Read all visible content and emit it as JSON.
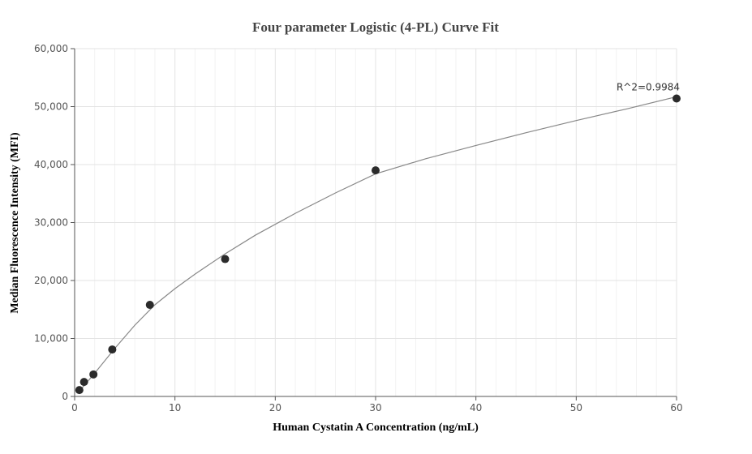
{
  "chart_data": {
    "type": "scatter",
    "title": "Four parameter Logistic (4-PL) Curve Fit",
    "xlabel": "Human Cystatin A Concentration (ng/mL)",
    "ylabel": "Median Fluorescence Intensity (MFI)",
    "xlim": [
      0,
      60
    ],
    "ylim": [
      0,
      60000
    ],
    "x_ticks": [
      0,
      10,
      20,
      30,
      40,
      50,
      60
    ],
    "y_ticks": [
      0,
      10000,
      20000,
      30000,
      40000,
      50000,
      60000
    ],
    "x_tick_labels": [
      "0",
      "10",
      "20",
      "30",
      "40",
      "50",
      "60"
    ],
    "y_tick_labels": [
      "0",
      "10,000",
      "20,000",
      "30,000",
      "40,000",
      "50,000",
      "60,000"
    ],
    "grid": true,
    "legend": false,
    "series": [
      {
        "points": [
          {
            "x": 0.47,
            "y": 1100
          },
          {
            "x": 0.94,
            "y": 2500
          },
          {
            "x": 1.875,
            "y": 3800
          },
          {
            "x": 3.75,
            "y": 8100
          },
          {
            "x": 7.5,
            "y": 15800
          },
          {
            "x": 15,
            "y": 23700
          },
          {
            "x": 30,
            "y": 39000
          },
          {
            "x": 60,
            "y": 51400
          }
        ],
        "color": "#2b2b2b"
      }
    ],
    "fit_curve": {
      "color": "#888888",
      "points": [
        {
          "x": 0.47,
          "y": 900
        },
        {
          "x": 1,
          "y": 2000
        },
        {
          "x": 2,
          "y": 4000
        },
        {
          "x": 4,
          "y": 8300
        },
        {
          "x": 6,
          "y": 12300
        },
        {
          "x": 8,
          "y": 15800
        },
        {
          "x": 10,
          "y": 18600
        },
        {
          "x": 12,
          "y": 21100
        },
        {
          "x": 15,
          "y": 24600
        },
        {
          "x": 18,
          "y": 27800
        },
        {
          "x": 22,
          "y": 31600
        },
        {
          "x": 26,
          "y": 35100
        },
        {
          "x": 30,
          "y": 38400
        },
        {
          "x": 35,
          "y": 41000
        },
        {
          "x": 40,
          "y": 43300
        },
        {
          "x": 45,
          "y": 45500
        },
        {
          "x": 50,
          "y": 47600
        },
        {
          "x": 55,
          "y": 49600
        },
        {
          "x": 60,
          "y": 51700
        }
      ]
    },
    "annotations": [
      {
        "text": "R^2=0.9984",
        "x": 60,
        "y": 51400
      }
    ]
  }
}
